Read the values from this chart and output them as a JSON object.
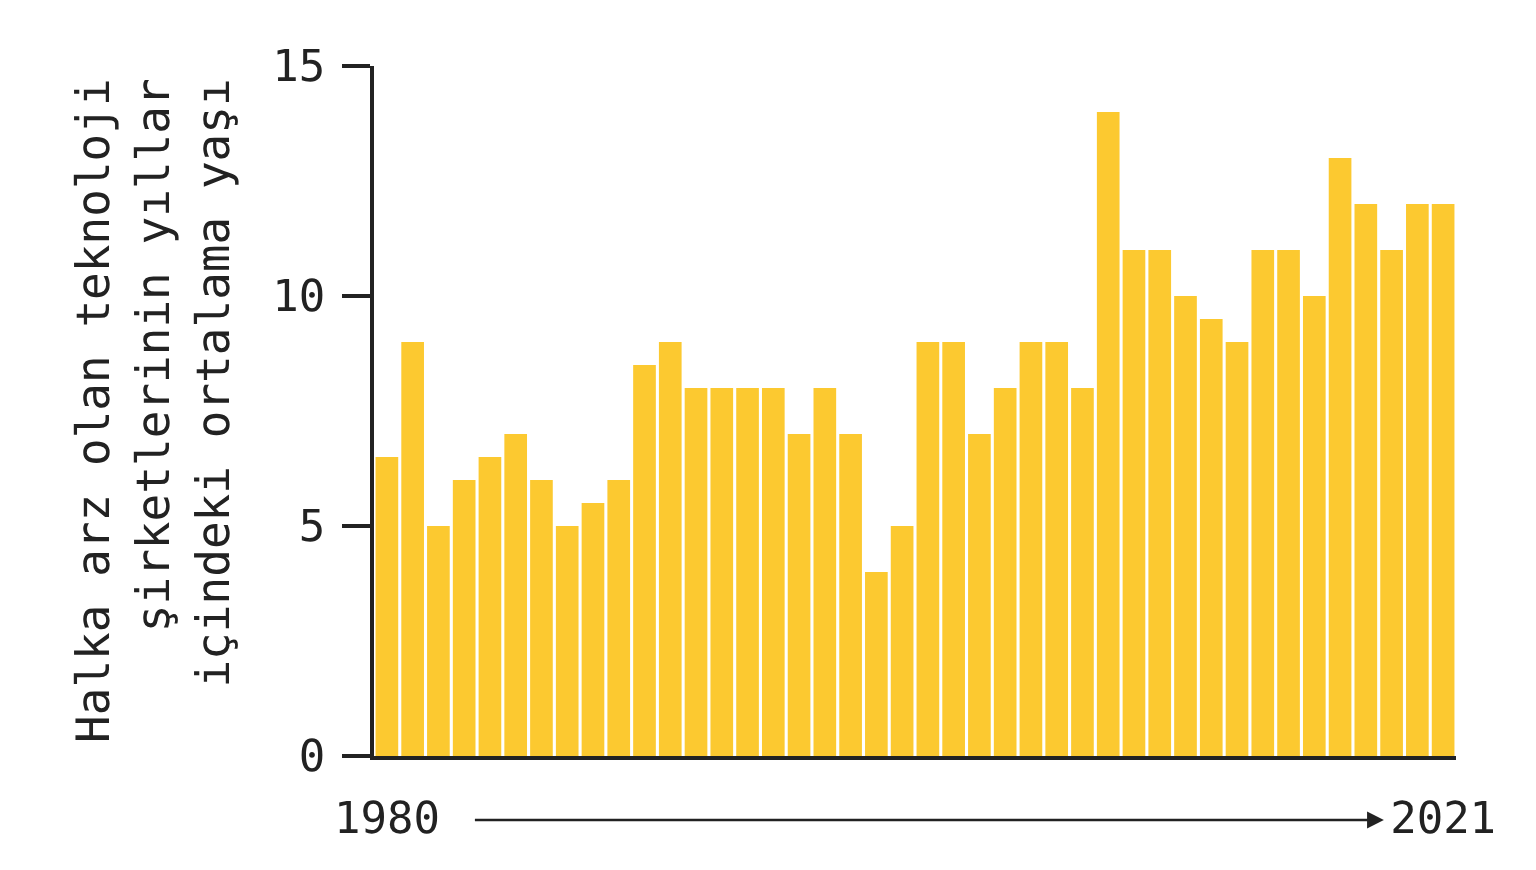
{
  "chart_data": {
    "type": "bar",
    "ylabel": "Halka arz olan teknoloji şirketlerinin yıllar içindeki ortalama yaşı",
    "categories": [
      "1980",
      null,
      null,
      null,
      null,
      null,
      null,
      null,
      null,
      null,
      null,
      null,
      null,
      null,
      null,
      null,
      null,
      null,
      null,
      null,
      null,
      null,
      null,
      null,
      null,
      null,
      null,
      null,
      null,
      null,
      null,
      null,
      null,
      null,
      null,
      null,
      null,
      null,
      null,
      null,
      null,
      "2021"
    ],
    "values": [
      6.5,
      9,
      5,
      6,
      6.5,
      7,
      6,
      5,
      5.5,
      6,
      8.5,
      9,
      8,
      8,
      8,
      8,
      7,
      8,
      7,
      4,
      5,
      9,
      9,
      7,
      8,
      9,
      9,
      8,
      14,
      11,
      11,
      10,
      9.5,
      9,
      11,
      11,
      10,
      13,
      12,
      11,
      12,
      12
    ],
    "color": "#fcc930",
    "ylim": [
      0,
      15
    ],
    "yticks": [
      0,
      5,
      10,
      15
    ]
  }
}
